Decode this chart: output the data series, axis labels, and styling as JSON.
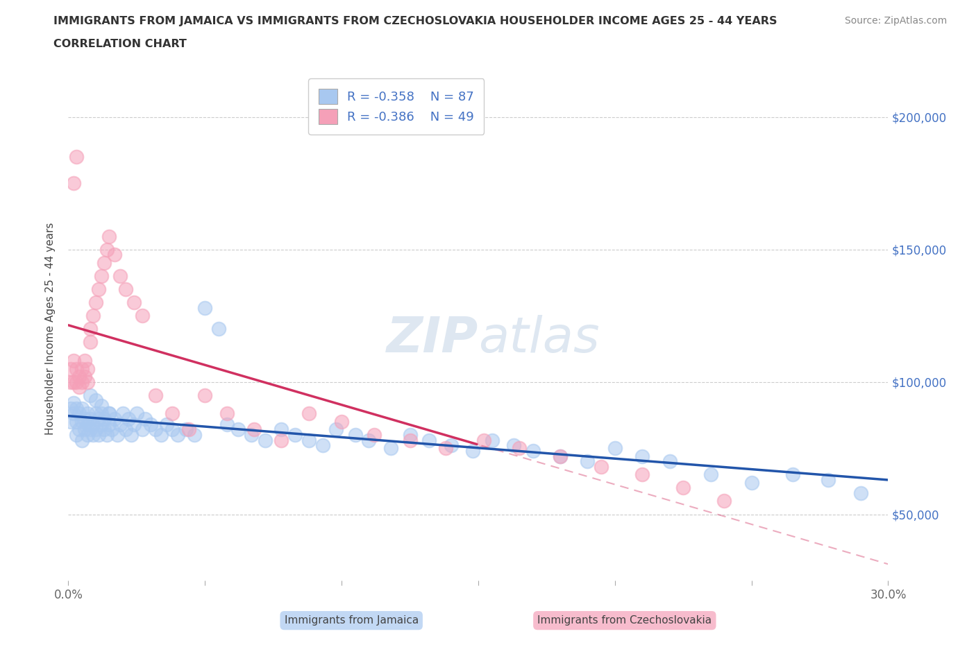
{
  "title_line1": "IMMIGRANTS FROM JAMAICA VS IMMIGRANTS FROM CZECHOSLOVAKIA HOUSEHOLDER INCOME AGES 25 - 44 YEARS",
  "title_line2": "CORRELATION CHART",
  "source_text": "Source: ZipAtlas.com",
  "ylabel": "Householder Income Ages 25 - 44 years",
  "xlim": [
    0.0,
    0.3
  ],
  "ylim": [
    25000,
    215000
  ],
  "yticks": [
    50000,
    100000,
    150000,
    200000
  ],
  "ytick_labels": [
    "$50,000",
    "$100,000",
    "$150,000",
    "$200,000"
  ],
  "xticks": [
    0.0,
    0.05,
    0.1,
    0.15,
    0.2,
    0.25,
    0.3
  ],
  "xtick_labels": [
    "0.0%",
    "",
    "",
    "",
    "",
    "",
    "30.0%"
  ],
  "jamaica_color": "#a8c8f0",
  "czechoslovakia_color": "#f5a0b8",
  "jamaica_line_color": "#2255aa",
  "czechoslovakia_line_color": "#d03060",
  "legend_R_jamaica": "R = -0.358",
  "legend_N_jamaica": "N = 87",
  "legend_R_czechoslovakia": "R = -0.386",
  "legend_N_czechoslovakia": "N = 49",
  "watermark_text": "ZIPatlas",
  "jamaica_x": [
    0.001,
    0.001,
    0.002,
    0.002,
    0.003,
    0.003,
    0.003,
    0.004,
    0.004,
    0.005,
    0.005,
    0.005,
    0.006,
    0.006,
    0.007,
    0.007,
    0.007,
    0.008,
    0.008,
    0.009,
    0.009,
    0.01,
    0.01,
    0.011,
    0.011,
    0.012,
    0.012,
    0.013,
    0.013,
    0.014,
    0.015,
    0.015,
    0.016,
    0.017,
    0.018,
    0.019,
    0.02,
    0.021,
    0.022,
    0.023,
    0.024,
    0.025,
    0.027,
    0.028,
    0.03,
    0.032,
    0.034,
    0.036,
    0.038,
    0.04,
    0.043,
    0.046,
    0.05,
    0.055,
    0.058,
    0.062,
    0.067,
    0.072,
    0.078,
    0.083,
    0.088,
    0.093,
    0.098,
    0.105,
    0.11,
    0.118,
    0.125,
    0.132,
    0.14,
    0.148,
    0.155,
    0.163,
    0.17,
    0.18,
    0.19,
    0.2,
    0.21,
    0.22,
    0.235,
    0.25,
    0.265,
    0.278,
    0.29,
    0.008,
    0.01,
    0.012,
    0.015
  ],
  "jamaica_y": [
    85000,
    90000,
    88000,
    92000,
    80000,
    85000,
    90000,
    82000,
    88000,
    85000,
    90000,
    78000,
    82000,
    86000,
    80000,
    84000,
    88000,
    82000,
    86000,
    80000,
    84000,
    88000,
    82000,
    86000,
    80000,
    84000,
    88000,
    82000,
    86000,
    80000,
    84000,
    88000,
    82000,
    86000,
    80000,
    84000,
    88000,
    82000,
    86000,
    80000,
    84000,
    88000,
    82000,
    86000,
    84000,
    82000,
    80000,
    84000,
    82000,
    80000,
    82000,
    80000,
    128000,
    120000,
    84000,
    82000,
    80000,
    78000,
    82000,
    80000,
    78000,
    76000,
    82000,
    80000,
    78000,
    75000,
    80000,
    78000,
    76000,
    74000,
    78000,
    76000,
    74000,
    72000,
    70000,
    75000,
    72000,
    70000,
    65000,
    62000,
    65000,
    63000,
    58000,
    95000,
    93000,
    91000,
    88000
  ],
  "czechoslovakia_x": [
    0.001,
    0.001,
    0.002,
    0.002,
    0.003,
    0.003,
    0.004,
    0.004,
    0.005,
    0.005,
    0.006,
    0.006,
    0.007,
    0.007,
    0.008,
    0.008,
    0.009,
    0.01,
    0.011,
    0.012,
    0.013,
    0.014,
    0.015,
    0.017,
    0.019,
    0.021,
    0.024,
    0.027,
    0.032,
    0.038,
    0.044,
    0.05,
    0.058,
    0.068,
    0.078,
    0.088,
    0.1,
    0.112,
    0.125,
    0.138,
    0.152,
    0.165,
    0.18,
    0.195,
    0.21,
    0.225,
    0.24,
    0.002,
    0.003
  ],
  "czechoslovakia_y": [
    100000,
    105000,
    100000,
    108000,
    105000,
    100000,
    102000,
    98000,
    100000,
    105000,
    102000,
    108000,
    100000,
    105000,
    115000,
    120000,
    125000,
    130000,
    135000,
    140000,
    145000,
    150000,
    155000,
    148000,
    140000,
    135000,
    130000,
    125000,
    95000,
    88000,
    82000,
    95000,
    88000,
    82000,
    78000,
    88000,
    85000,
    80000,
    78000,
    75000,
    78000,
    75000,
    72000,
    68000,
    65000,
    60000,
    55000,
    175000,
    185000
  ]
}
